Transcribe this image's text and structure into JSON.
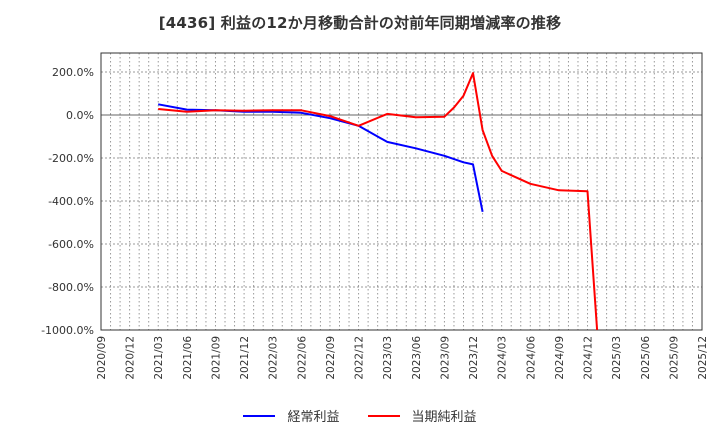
{
  "title": "[4436]  利益の12か月移動合計の対前年同期増減率の推移",
  "legend": [
    {
      "label": "経常利益",
      "color": "#0000ff"
    },
    {
      "label": "当期純利益",
      "color": "#ff0000"
    }
  ],
  "chart_data": {
    "type": "line",
    "title": "[4436] 利益の12か月移動合計の対前年同期増減率の推移",
    "xlabel": "",
    "ylabel": "",
    "ylim": [
      -1000,
      250
    ],
    "yticks": [
      "200.0%",
      "0.0%",
      "-200.0%",
      "-400.0%",
      "-600.0%",
      "-800.0%",
      "-1000.0%"
    ],
    "ytick_values": [
      200,
      0,
      -200,
      -400,
      -600,
      -800,
      -1000
    ],
    "xticks": [
      "2020/09",
      "2020/12",
      "2021/03",
      "2021/06",
      "2021/09",
      "2021/12",
      "2022/03",
      "2022/06",
      "2022/09",
      "2022/12",
      "2023/03",
      "2023/06",
      "2023/09",
      "2023/12",
      "2024/03",
      "2024/06",
      "2024/09",
      "2024/12",
      "2025/03",
      "2025/06",
      "2025/09",
      "2025/12"
    ],
    "grid": true,
    "legend_position": "bottom",
    "series": [
      {
        "name": "経常利益",
        "color": "#0000ff",
        "points": [
          [
            "2021/03",
            50
          ],
          [
            "2021/06",
            25
          ],
          [
            "2021/09",
            22
          ],
          [
            "2021/12",
            15
          ],
          [
            "2022/03",
            15
          ],
          [
            "2022/06",
            10
          ],
          [
            "2022/09",
            -15
          ],
          [
            "2022/12",
            -50
          ],
          [
            "2023/03",
            -125
          ],
          [
            "2023/06",
            -155
          ],
          [
            "2023/09",
            -190
          ],
          [
            "2023/10",
            -205
          ],
          [
            "2023/11",
            -220
          ],
          [
            "2023/12",
            -230
          ],
          [
            "2024/01",
            -450
          ]
        ]
      },
      {
        "name": "当期純利益",
        "color": "#ff0000",
        "points": [
          [
            "2021/03",
            28
          ],
          [
            "2021/06",
            15
          ],
          [
            "2021/09",
            22
          ],
          [
            "2021/12",
            20
          ],
          [
            "2022/03",
            22
          ],
          [
            "2022/06",
            22
          ],
          [
            "2022/09",
            -5
          ],
          [
            "2022/12",
            -50
          ],
          [
            "2023/03",
            5
          ],
          [
            "2023/06",
            -10
          ],
          [
            "2023/09",
            -8
          ],
          [
            "2023/10",
            35
          ],
          [
            "2023/11",
            90
          ],
          [
            "2023/12",
            195
          ],
          [
            "2024/01",
            -70
          ],
          [
            "2024/02",
            -190
          ],
          [
            "2024/03",
            -260
          ],
          [
            "2024/06",
            -320
          ],
          [
            "2024/09",
            -350
          ],
          [
            "2024/12",
            -355
          ],
          [
            "2025/01",
            -1000
          ]
        ]
      }
    ]
  }
}
